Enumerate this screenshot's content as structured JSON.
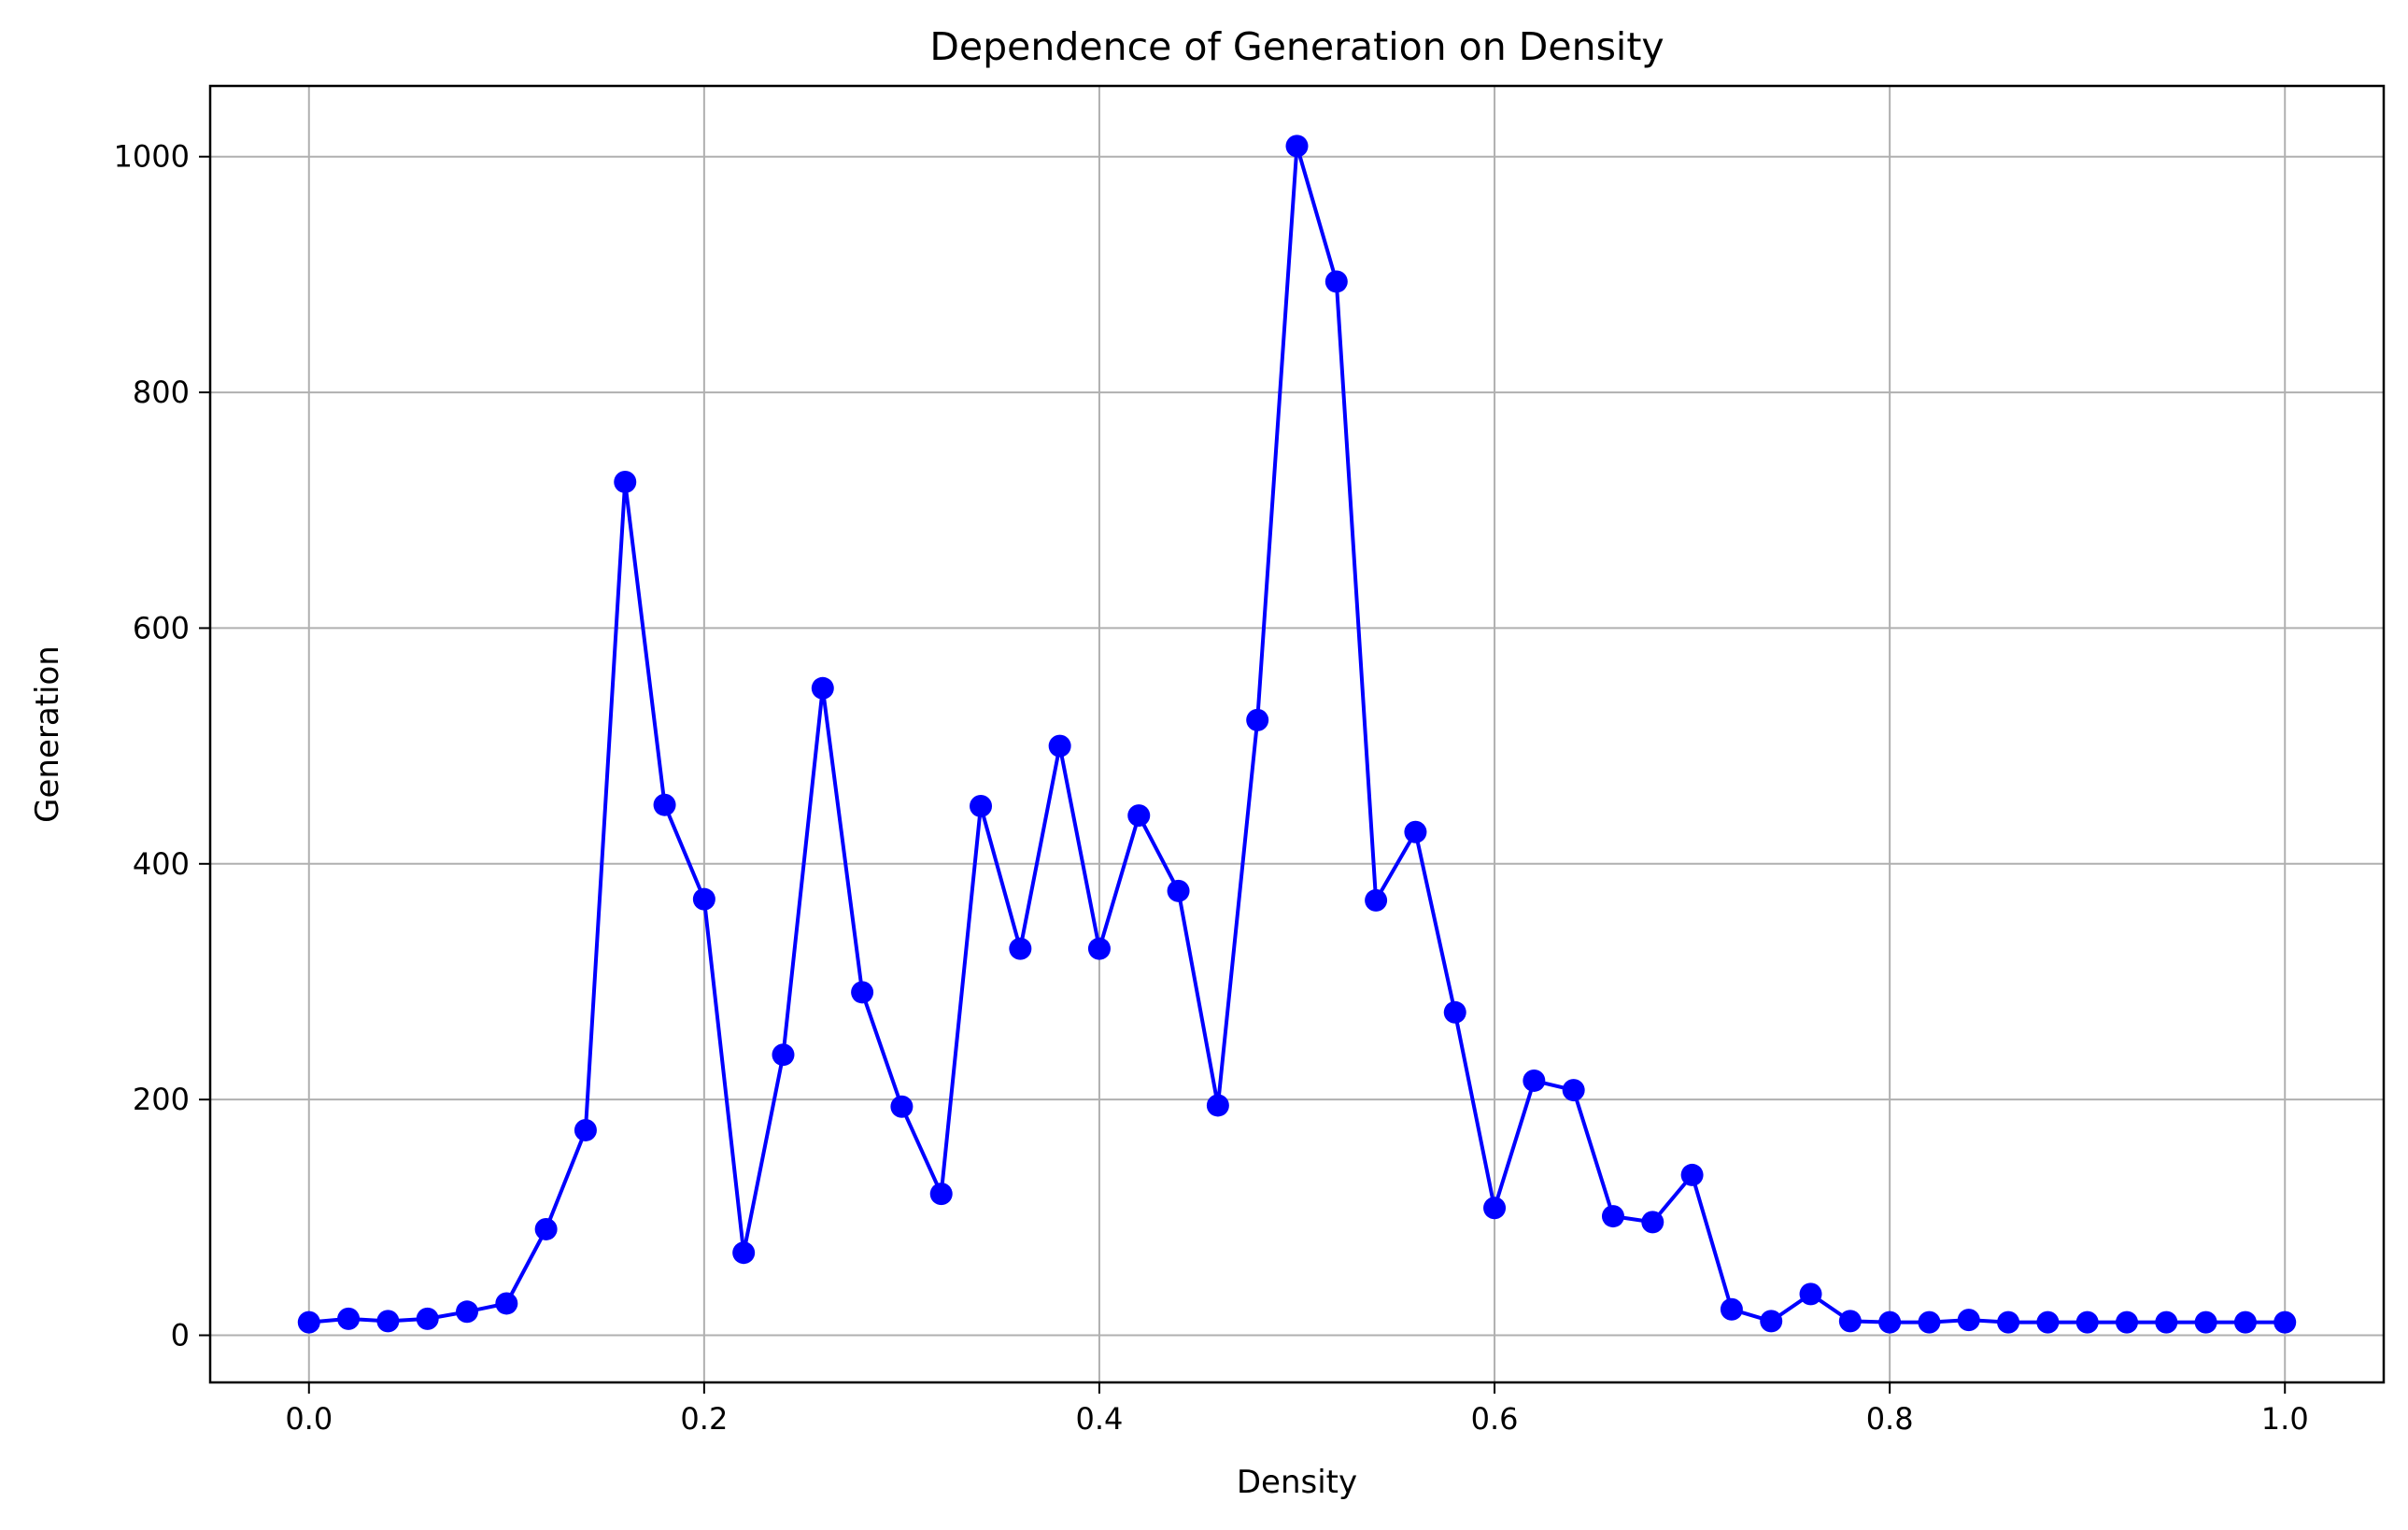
{
  "chart_data": {
    "type": "line",
    "title": "Dependence of Generation on Density",
    "xlabel": "Density",
    "ylabel": "Generation",
    "xlim": [
      -0.05,
      1.05
    ],
    "ylim": [
      -40,
      1060
    ],
    "xticks": [
      0.0,
      0.2,
      0.4,
      0.6,
      0.8,
      1.0
    ],
    "xtick_labels": [
      "0.0",
      "0.2",
      "0.4",
      "0.6",
      "0.8",
      "1.0"
    ],
    "yticks": [
      0,
      200,
      400,
      600,
      800,
      1000
    ],
    "ytick_labels": [
      "0",
      "200",
      "400",
      "600",
      "800",
      "1000"
    ],
    "grid": true,
    "legend": null,
    "series": [
      {
        "color": "#0000ff",
        "marker": "circle",
        "x": [
          0.0,
          0.02,
          0.04,
          0.06,
          0.08,
          0.1,
          0.12,
          0.14,
          0.16,
          0.18,
          0.2,
          0.22,
          0.24,
          0.26,
          0.28,
          0.3,
          0.32,
          0.34,
          0.36,
          0.38,
          0.4,
          0.42,
          0.44,
          0.46,
          0.48,
          0.5,
          0.52,
          0.54,
          0.56,
          0.58,
          0.6,
          0.62,
          0.64,
          0.66,
          0.68,
          0.7,
          0.72,
          0.74,
          0.76,
          0.78,
          0.8,
          0.82,
          0.84,
          0.86,
          0.88,
          0.9,
          0.92,
          0.94,
          0.96,
          0.98,
          1.0
        ],
        "y": [
          11,
          14,
          12,
          14,
          20,
          27,
          90,
          174,
          724,
          450,
          370,
          70,
          238,
          549,
          291,
          194,
          120,
          449,
          328,
          500,
          328,
          441,
          377,
          195,
          522,
          1009,
          894,
          369,
          427,
          274,
          108,
          216,
          208,
          101,
          96,
          136,
          22,
          12,
          35,
          12,
          11,
          11,
          13,
          11,
          11,
          11,
          11,
          11,
          11,
          11,
          11
        ]
      }
    ]
  }
}
